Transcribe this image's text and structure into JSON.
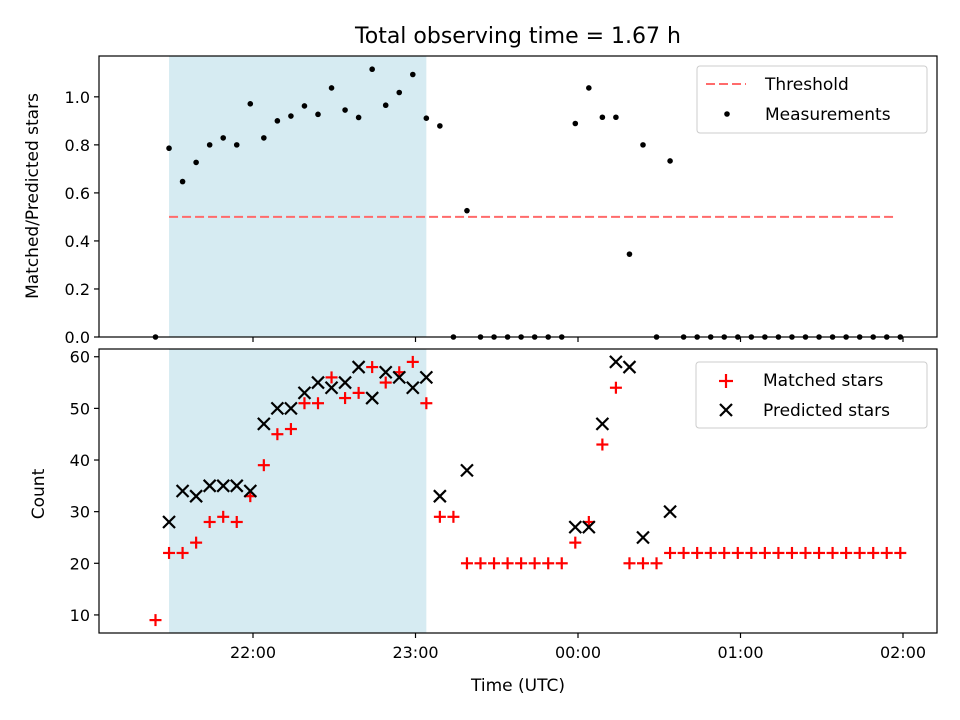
{
  "title": "Total observing time = 1.67 h",
  "colors": {
    "shade": "#add8e6",
    "threshold": "#ff6b6b",
    "measurement": "#000000",
    "matched": "#ff0000",
    "predicted": "#000000"
  },
  "chart_data": [
    {
      "type": "scatter",
      "ylabel": "Matched/Predicted stars",
      "ylim": [
        0,
        1.17
      ],
      "yticks": [
        0.0,
        0.2,
        0.4,
        0.6,
        0.8,
        1.0
      ],
      "ytick_labels": [
        "0.0",
        "0.2",
        "0.4",
        "0.6",
        "0.8",
        "1.0"
      ],
      "grid": false,
      "legend_position": "top-right",
      "legend": [
        "Threshold",
        "Measurements"
      ],
      "shaded_interval": [
        "21:29",
        "23:04"
      ],
      "threshold": {
        "name": "Threshold",
        "value": 0.5,
        "x_start": "21:29",
        "x_end": "01:57"
      },
      "series": [
        {
          "name": "Measurements",
          "points": [
            [
              "21:24",
              0.0
            ],
            [
              "21:29",
              0.786
            ],
            [
              "21:34",
              0.647
            ],
            [
              "21:39",
              0.727
            ],
            [
              "21:44",
              0.8
            ],
            [
              "21:49",
              0.829
            ],
            [
              "21:54",
              0.8
            ],
            [
              "21:59",
              0.971
            ],
            [
              "22:04",
              0.829
            ],
            [
              "22:09",
              0.9
            ],
            [
              "22:14",
              0.92
            ],
            [
              "22:19",
              0.962
            ],
            [
              "22:24",
              0.927
            ],
            [
              "22:29",
              1.037
            ],
            [
              "22:34",
              0.945
            ],
            [
              "22:39",
              0.914
            ],
            [
              "22:44",
              1.115
            ],
            [
              "22:49",
              0.965
            ],
            [
              "22:54",
              1.018
            ],
            [
              "22:59",
              1.093
            ],
            [
              "23:04",
              0.911
            ],
            [
              "23:09",
              0.879
            ],
            [
              "23:14",
              0.0
            ],
            [
              "23:19",
              0.526
            ],
            [
              "23:24",
              0.0
            ],
            [
              "23:29",
              0.0
            ],
            [
              "23:34",
              0.0
            ],
            [
              "23:39",
              0.0
            ],
            [
              "23:44",
              0.0
            ],
            [
              "23:49",
              0.0
            ],
            [
              "23:54",
              0.0
            ],
            [
              "23:59",
              0.889
            ],
            [
              "00:04",
              1.037
            ],
            [
              "00:09",
              0.915
            ],
            [
              "00:14",
              0.915
            ],
            [
              "00:19",
              0.345
            ],
            [
              "00:24",
              0.8
            ],
            [
              "00:29",
              0.0
            ],
            [
              "00:34",
              0.733
            ],
            [
              "00:39",
              0.0
            ],
            [
              "00:44",
              0.0
            ],
            [
              "00:49",
              0.0
            ],
            [
              "00:54",
              0.0
            ],
            [
              "00:59",
              0.0
            ],
            [
              "01:04",
              0.0
            ],
            [
              "01:09",
              0.0
            ],
            [
              "01:14",
              0.0
            ],
            [
              "01:19",
              0.0
            ],
            [
              "01:24",
              0.0
            ],
            [
              "01:29",
              0.0
            ],
            [
              "01:34",
              0.0
            ],
            [
              "01:39",
              0.0
            ],
            [
              "01:44",
              0.0
            ],
            [
              "01:49",
              0.0
            ],
            [
              "01:54",
              0.0
            ],
            [
              "01:59",
              0.0
            ]
          ]
        }
      ]
    },
    {
      "type": "scatter",
      "xlabel": "Time (UTC)",
      "ylabel": "Count",
      "ylim": [
        6.5,
        61.5
      ],
      "yticks": [
        10,
        20,
        30,
        40,
        50,
        60
      ],
      "ytick_labels": [
        "10",
        "20",
        "30",
        "40",
        "50",
        "60"
      ],
      "xticks": [
        "22:00",
        "23:00",
        "00:00",
        "01:00",
        "02:00"
      ],
      "grid": false,
      "legend_position": "top-right",
      "legend": [
        "Matched stars",
        "Predicted stars"
      ],
      "shaded_interval": [
        "21:29",
        "23:04"
      ],
      "series": [
        {
          "name": "Matched stars",
          "points": [
            [
              "21:24",
              9
            ],
            [
              "21:29",
              22
            ],
            [
              "21:34",
              22
            ],
            [
              "21:39",
              24
            ],
            [
              "21:44",
              28
            ],
            [
              "21:49",
              29
            ],
            [
              "21:54",
              28
            ],
            [
              "21:59",
              33
            ],
            [
              "22:04",
              39
            ],
            [
              "22:09",
              45
            ],
            [
              "22:14",
              46
            ],
            [
              "22:19",
              51
            ],
            [
              "22:24",
              51
            ],
            [
              "22:29",
              56
            ],
            [
              "22:34",
              52
            ],
            [
              "22:39",
              53
            ],
            [
              "22:44",
              58
            ],
            [
              "22:49",
              55
            ],
            [
              "22:54",
              57
            ],
            [
              "22:59",
              59
            ],
            [
              "23:04",
              51
            ],
            [
              "23:09",
              29
            ],
            [
              "23:14",
              29
            ],
            [
              "23:19",
              20
            ],
            [
              "23:24",
              20
            ],
            [
              "23:29",
              20
            ],
            [
              "23:34",
              20
            ],
            [
              "23:39",
              20
            ],
            [
              "23:44",
              20
            ],
            [
              "23:49",
              20
            ],
            [
              "23:54",
              20
            ],
            [
              "23:59",
              24
            ],
            [
              "00:04",
              28
            ],
            [
              "00:09",
              43
            ],
            [
              "00:14",
              54
            ],
            [
              "00:19",
              20
            ],
            [
              "00:24",
              20
            ],
            [
              "00:29",
              20
            ],
            [
              "00:34",
              22
            ],
            [
              "00:39",
              22
            ],
            [
              "00:44",
              22
            ],
            [
              "00:49",
              22
            ],
            [
              "00:54",
              22
            ],
            [
              "00:59",
              22
            ],
            [
              "01:04",
              22
            ],
            [
              "01:09",
              22
            ],
            [
              "01:14",
              22
            ],
            [
              "01:19",
              22
            ],
            [
              "01:24",
              22
            ],
            [
              "01:29",
              22
            ],
            [
              "01:34",
              22
            ],
            [
              "01:39",
              22
            ],
            [
              "01:44",
              22
            ],
            [
              "01:49",
              22
            ],
            [
              "01:54",
              22
            ],
            [
              "01:59",
              22
            ]
          ]
        },
        {
          "name": "Predicted stars",
          "points": [
            [
              "21:29",
              28
            ],
            [
              "21:34",
              34
            ],
            [
              "21:39",
              33
            ],
            [
              "21:44",
              35
            ],
            [
              "21:49",
              35
            ],
            [
              "21:54",
              35
            ],
            [
              "21:59",
              34
            ],
            [
              "22:04",
              47
            ],
            [
              "22:09",
              50
            ],
            [
              "22:14",
              50
            ],
            [
              "22:19",
              53
            ],
            [
              "22:24",
              55
            ],
            [
              "22:29",
              54
            ],
            [
              "22:34",
              55
            ],
            [
              "22:39",
              58
            ],
            [
              "22:44",
              52
            ],
            [
              "22:49",
              57
            ],
            [
              "22:54",
              56
            ],
            [
              "22:59",
              54
            ],
            [
              "23:04",
              56
            ],
            [
              "23:09",
              33
            ],
            [
              "23:19",
              38
            ],
            [
              "23:59",
              27
            ],
            [
              "00:04",
              27
            ],
            [
              "00:09",
              47
            ],
            [
              "00:14",
              59
            ],
            [
              "00:19",
              58
            ],
            [
              "00:24",
              25
            ],
            [
              "00:34",
              30
            ]
          ]
        }
      ]
    }
  ]
}
